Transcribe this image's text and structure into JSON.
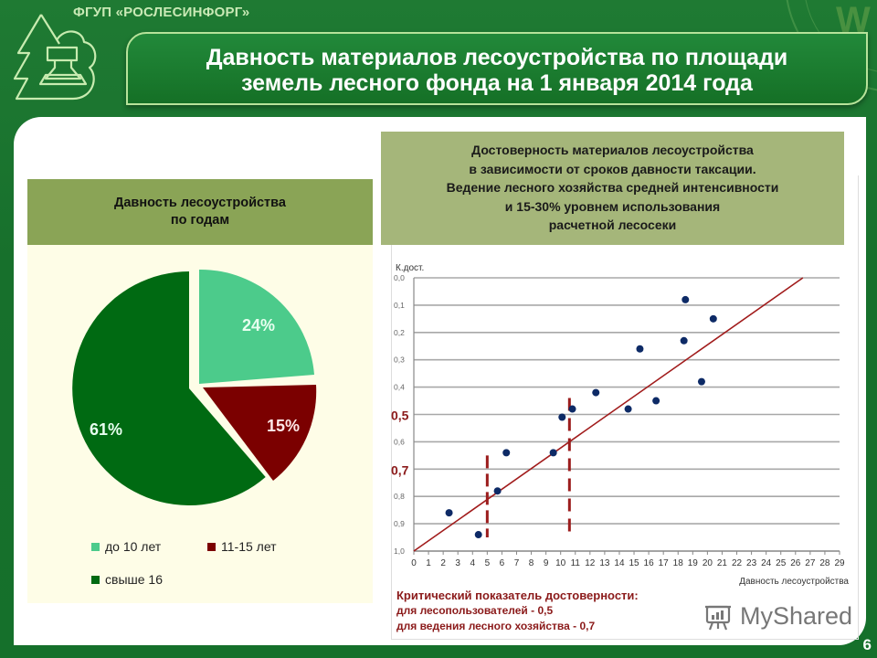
{
  "header": {
    "organization": "ФГУП «РОСЛЕСИНФОРГ»",
    "title_line1": "Давность материалов лесоустройства по площади",
    "title_line2": "земель лесного фонда на 1 января 2014 года"
  },
  "left_panel": {
    "heading_line1": "Давность лесоустройства",
    "heading_line2": "по годам"
  },
  "right_panel": {
    "heading_lines": [
      "Достоверность материалов лесоустройства",
      "в зависимости от сроков давности таксации.",
      "Ведение лесного хозяйства средней интенсивности",
      "и 15-30% уровнем использования",
      "расчетной лесосеки"
    ]
  },
  "notes": {
    "heading": "Критический показатель достоверности:",
    "line1": "для лесопользователей - 0,5",
    "line2": "для ведения лесного хозяйства - 0,7"
  },
  "watermark": "MyShared",
  "page_number": "6",
  "colors": {
    "bg_green": "#17702c",
    "light_green_slice": "#4ccb8b",
    "dark_red_slice": "#7b0000",
    "dark_green_slice": "#006a12",
    "olive_header": "#8aa456",
    "dot_blue": "#0d2a66",
    "trend_red": "#a11b1b"
  },
  "chart_data": [
    {
      "type": "pie",
      "title": "Давность лесоустройства по годам",
      "categories": [
        "до 10 лет",
        "11-15 лет",
        "свыше 16"
      ],
      "values": [
        24,
        15,
        61
      ],
      "labels": [
        "24%",
        "15%",
        "61%"
      ],
      "legend_position": "bottom"
    },
    {
      "type": "scatter",
      "title": "Достоверность материалов лесоустройства в зависимости от сроков давности таксации",
      "xlabel": "Давность лесоустройства",
      "ylabel": "К.дост.",
      "xlim": [
        0,
        29
      ],
      "ylim": [
        1.0,
        0.0
      ],
      "y_inverted": true,
      "x_ticks": [
        "0",
        "1",
        "2",
        "3",
        "4",
        "5",
        "6",
        "7",
        "8",
        "9",
        "10",
        "11",
        "12",
        "13",
        "14",
        "15",
        "16",
        "17",
        "18",
        "19",
        "20",
        "21",
        "22",
        "23",
        "24",
        "25",
        "26",
        "27",
        "28",
        "29"
      ],
      "y_ticks": [
        "0,0",
        "0,1",
        "0,2",
        "0,3",
        "0,4",
        "0,5",
        "0,6",
        "0,7",
        "0,8",
        "0,9",
        "1,0"
      ],
      "highlighted_y_ticks": [
        "0,5",
        "0,7"
      ],
      "grid": true,
      "points": [
        {
          "x": 2.4,
          "y": 0.86
        },
        {
          "x": 4.4,
          "y": 0.94
        },
        {
          "x": 5.7,
          "y": 0.78
        },
        {
          "x": 6.3,
          "y": 0.64
        },
        {
          "x": 9.5,
          "y": 0.64
        },
        {
          "x": 10.1,
          "y": 0.51
        },
        {
          "x": 10.8,
          "y": 0.48
        },
        {
          "x": 12.4,
          "y": 0.42
        },
        {
          "x": 14.6,
          "y": 0.48
        },
        {
          "x": 15.4,
          "y": 0.26
        },
        {
          "x": 16.5,
          "y": 0.45
        },
        {
          "x": 18.4,
          "y": 0.23
        },
        {
          "x": 18.5,
          "y": 0.08
        },
        {
          "x": 19.6,
          "y": 0.38
        },
        {
          "x": 20.4,
          "y": 0.15
        }
      ],
      "trendline": {
        "from": {
          "x": 0,
          "y": 1.0
        },
        "to": {
          "x": 26.5,
          "y": 0.0
        }
      },
      "vertical_markers": [
        {
          "x": 5,
          "label": "0,7 threshold"
        },
        {
          "x": 10.6,
          "label": "0,5 threshold"
        }
      ]
    }
  ]
}
